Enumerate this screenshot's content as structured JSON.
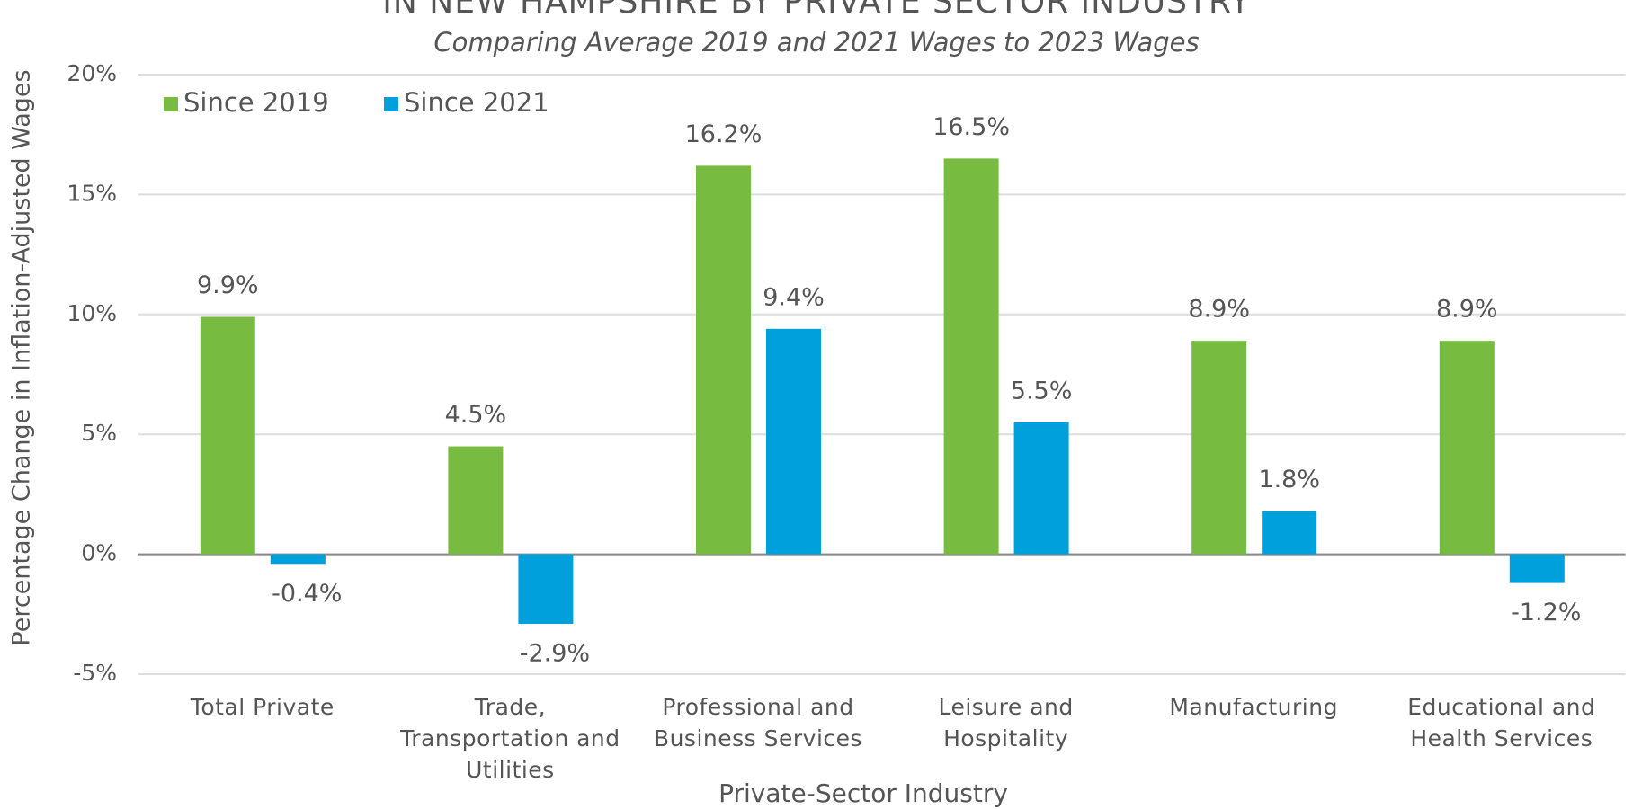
{
  "chart_data": {
    "type": "bar",
    "title": "IN NEW HAMPSHIRE BY PRIVATE SECTOR INDUSTRY",
    "subtitle": "Comparing Average 2019 and 2021 Wages to 2023 Wages",
    "x_label": "Private-Sector Industry",
    "y_label": "Percentage Change in Inflation-Adjusted Wages",
    "categories": [
      "Total Private",
      "Trade, Transportation and Utilities",
      "Professional and Business Services",
      "Leisure and Hospitality",
      "Manufacturing",
      "Educational and Health Services"
    ],
    "series": [
      {
        "name": "Since 2019",
        "color": "#77bb41",
        "values": [
          9.9,
          4.5,
          16.2,
          16.5,
          8.9,
          8.9
        ],
        "value_labels": [
          "9.9%",
          "4.5%",
          "16.2%",
          "16.5%",
          "8.9%",
          "8.9%"
        ]
      },
      {
        "name": "Since 2021",
        "color": "#00a0dd",
        "values": [
          -0.4,
          -2.9,
          9.4,
          5.5,
          1.8,
          -1.2
        ],
        "value_labels": [
          "-0.4%",
          "-2.9%",
          "9.4%",
          "5.5%",
          "1.8%",
          "-1.2%"
        ]
      }
    ],
    "ylim": [
      -5,
      20
    ],
    "yticks": [
      {
        "value": -5,
        "label": "-5%"
      },
      {
        "value": 0,
        "label": "0%"
      },
      {
        "value": 5,
        "label": "5%"
      },
      {
        "value": 10,
        "label": "10%"
      },
      {
        "value": 15,
        "label": "15%"
      },
      {
        "value": 20,
        "label": "20%"
      }
    ],
    "grid": true,
    "legend": "top-left"
  }
}
